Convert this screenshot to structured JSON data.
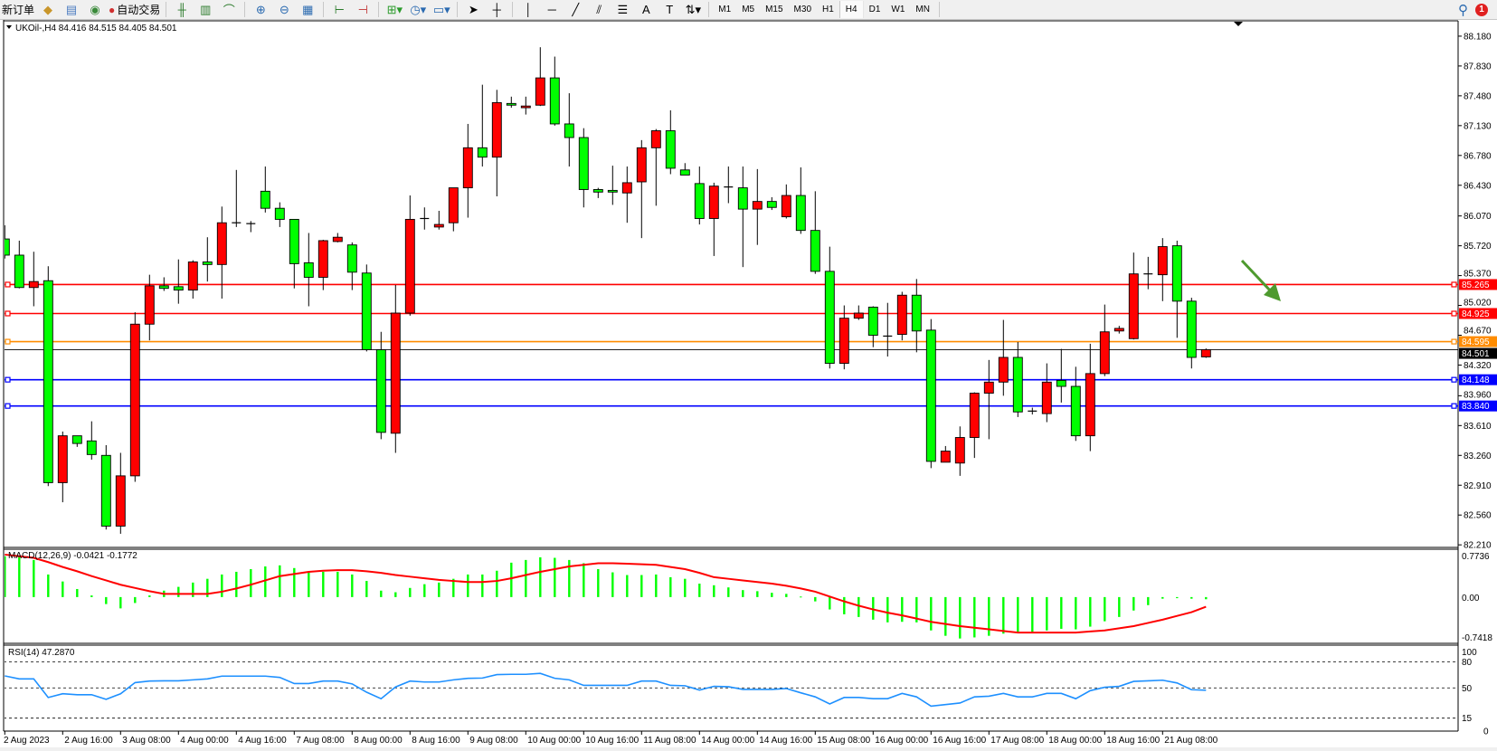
{
  "toolbar": {
    "new_order": "新订单",
    "auto_trading": "自动交易",
    "icons": [
      "gold-bar-icon",
      "server-icon",
      "signal-icon",
      "autotrade-icon",
      "bar-chart-icon",
      "candlestick-chart-icon",
      "line-chart-icon",
      "zoom-in-icon",
      "zoom-out-icon",
      "tile-windows-icon",
      "chart-shift-icon",
      "autoscroll-icon",
      "indicators-icon",
      "periods-clock-icon",
      "templates-icon",
      "cursor-icon",
      "crosshair-icon",
      "vertical-line-icon",
      "horizontal-line-icon",
      "trendline-icon",
      "equidistant-channel-icon",
      "fibonacci-icon",
      "text-icon",
      "text-label-icon",
      "arrows-icon"
    ],
    "timeframes": [
      "M1",
      "M5",
      "M15",
      "M30",
      "H1",
      "H4",
      "D1",
      "W1",
      "MN"
    ],
    "active_timeframe": "H4",
    "notification_count": "1"
  },
  "chart_data": {
    "type": "candlestick",
    "symbol_label": "UKOil-,H4  84.416 84.515 84.405 84.501",
    "ylim": [
      82.18,
      88.36
    ],
    "price_ticks": [
      "88.180",
      "87.830",
      "87.480",
      "87.130",
      "86.780",
      "86.430",
      "86.070",
      "85.720",
      "85.370",
      "85.020",
      "84.670",
      "84.320",
      "83.960",
      "83.610",
      "83.260",
      "82.910",
      "82.560",
      "82.210"
    ],
    "bull_color": "#ff0000",
    "bear_color": "#00ff00",
    "candles_ohlc": [
      [
        85.8,
        85.96,
        85.57,
        85.61
      ],
      [
        85.61,
        85.78,
        85.22,
        85.23
      ],
      [
        85.23,
        85.65,
        85.01,
        85.3
      ],
      [
        85.31,
        85.48,
        82.9,
        82.94
      ],
      [
        82.94,
        83.54,
        82.71,
        83.49
      ],
      [
        83.49,
        83.49,
        83.36,
        83.4
      ],
      [
        83.43,
        83.66,
        83.21,
        83.27
      ],
      [
        83.26,
        83.38,
        82.39,
        82.43
      ],
      [
        82.43,
        83.29,
        82.34,
        83.02
      ],
      [
        83.02,
        84.94,
        82.95,
        84.8
      ],
      [
        84.8,
        85.38,
        84.61,
        85.25
      ],
      [
        85.25,
        85.35,
        85.19,
        85.22
      ],
      [
        85.24,
        85.56,
        85.04,
        85.2
      ],
      [
        85.2,
        85.55,
        85.1,
        85.53
      ],
      [
        85.53,
        85.82,
        85.3,
        85.5
      ],
      [
        85.5,
        86.18,
        85.1,
        85.99
      ],
      [
        85.99,
        86.61,
        85.94,
        85.99
      ],
      [
        85.98,
        86.01,
        85.88,
        85.98
      ],
      [
        86.36,
        86.65,
        86.11,
        86.16
      ],
      [
        86.16,
        86.23,
        85.94,
        86.03
      ],
      [
        86.03,
        86.03,
        85.22,
        85.51
      ],
      [
        85.52,
        85.87,
        85.01,
        85.35
      ],
      [
        85.35,
        85.79,
        85.2,
        85.78
      ],
      [
        85.77,
        85.87,
        85.76,
        85.82
      ],
      [
        85.73,
        85.76,
        85.2,
        85.41
      ],
      [
        85.4,
        85.5,
        84.48,
        84.5
      ],
      [
        84.5,
        84.71,
        83.45,
        83.53
      ],
      [
        83.52,
        85.26,
        83.29,
        84.93
      ],
      [
        84.93,
        86.31,
        84.9,
        86.03
      ],
      [
        86.04,
        86.17,
        85.91,
        86.04
      ],
      [
        85.94,
        86.13,
        85.91,
        85.97
      ],
      [
        85.99,
        86.4,
        85.89,
        86.4
      ],
      [
        86.4,
        87.15,
        86.05,
        86.87
      ],
      [
        86.87,
        87.61,
        86.65,
        86.76
      ],
      [
        86.76,
        87.55,
        86.3,
        87.4
      ],
      [
        87.39,
        87.47,
        87.34,
        87.37
      ],
      [
        87.34,
        87.47,
        87.26,
        87.36
      ],
      [
        87.37,
        88.05,
        87.36,
        87.69
      ],
      [
        87.69,
        87.94,
        87.13,
        87.15
      ],
      [
        87.15,
        87.51,
        86.65,
        86.99
      ],
      [
        86.99,
        87.1,
        86.17,
        86.38
      ],
      [
        86.38,
        86.4,
        86.28,
        86.35
      ],
      [
        86.37,
        86.66,
        86.2,
        86.35
      ],
      [
        86.34,
        86.65,
        85.99,
        86.46
      ],
      [
        86.47,
        86.96,
        85.81,
        86.87
      ],
      [
        86.87,
        87.09,
        86.19,
        87.07
      ],
      [
        87.07,
        87.31,
        86.56,
        86.63
      ],
      [
        86.61,
        86.69,
        86.55,
        86.55
      ],
      [
        86.45,
        86.65,
        85.97,
        86.04
      ],
      [
        86.04,
        86.46,
        85.6,
        86.42
      ],
      [
        86.41,
        86.65,
        86.22,
        86.41
      ],
      [
        86.4,
        86.65,
        85.47,
        86.15
      ],
      [
        86.15,
        86.62,
        85.73,
        86.24
      ],
      [
        86.24,
        86.29,
        86.14,
        86.17
      ],
      [
        86.06,
        86.44,
        86.04,
        86.31
      ],
      [
        86.31,
        86.64,
        85.86,
        85.9
      ],
      [
        85.9,
        86.36,
        85.39,
        85.42
      ],
      [
        85.42,
        85.71,
        84.28,
        84.34
      ],
      [
        84.34,
        85.02,
        84.27,
        84.87
      ],
      [
        84.87,
        85.02,
        84.85,
        84.93
      ],
      [
        85.0,
        85.01,
        84.53,
        84.67
      ],
      [
        84.66,
        85.05,
        84.42,
        84.66
      ],
      [
        84.68,
        85.18,
        84.61,
        85.14
      ],
      [
        85.14,
        85.33,
        84.47,
        84.72
      ],
      [
        84.73,
        84.86,
        83.11,
        83.19
      ],
      [
        83.18,
        83.37,
        83.18,
        83.31
      ],
      [
        83.17,
        83.6,
        83.02,
        83.47
      ],
      [
        83.47,
        84.0,
        83.23,
        83.99
      ],
      [
        83.99,
        84.38,
        83.45,
        84.12
      ],
      [
        84.12,
        84.85,
        83.96,
        84.41
      ],
      [
        84.41,
        84.59,
        83.71,
        83.77
      ],
      [
        83.78,
        83.82,
        83.74,
        83.78
      ],
      [
        83.75,
        84.34,
        83.65,
        84.12
      ],
      [
        84.14,
        84.51,
        83.88,
        84.07
      ],
      [
        84.07,
        84.3,
        83.43,
        83.49
      ],
      [
        83.49,
        84.57,
        83.31,
        84.22
      ],
      [
        84.22,
        85.03,
        84.19,
        84.71
      ],
      [
        84.72,
        84.78,
        84.69,
        84.75
      ],
      [
        84.63,
        85.64,
        84.62,
        85.39
      ],
      [
        85.39,
        85.59,
        85.21,
        85.39
      ],
      [
        85.38,
        85.81,
        85.07,
        85.71
      ],
      [
        85.72,
        85.78,
        84.64,
        85.07
      ],
      [
        85.07,
        85.11,
        84.28,
        84.41
      ],
      [
        84.416,
        84.515,
        84.405,
        84.501
      ]
    ],
    "levels": [
      {
        "value": "85.265",
        "color": "#ff0000"
      },
      {
        "value": "84.925",
        "color": "#ff0000"
      },
      {
        "value": "84.595",
        "color": "#ff8c00"
      },
      {
        "value": "84.148",
        "color": "#0000ff"
      },
      {
        "value": "83.840",
        "color": "#0000ff"
      }
    ],
    "bid": {
      "value": "84.501",
      "color": "#000000"
    },
    "arrow": {
      "direction": "down-right",
      "color": "#4e9a2e"
    },
    "time_labels": [
      "2 Aug 2023",
      "2 Aug 16:00",
      "3 Aug 08:00",
      "4 Aug 00:00",
      "4 Aug 16:00",
      "7 Aug 08:00",
      "8 Aug 00:00",
      "8 Aug 16:00",
      "9 Aug 08:00",
      "10 Aug 00:00",
      "10 Aug 16:00",
      "11 Aug 08:00",
      "14 Aug 00:00",
      "14 Aug 16:00",
      "15 Aug 08:00",
      "16 Aug 00:00",
      "16 Aug 16:00",
      "17 Aug 08:00",
      "18 Aug 00:00",
      "18 Aug 16:00",
      "21 Aug 08:00"
    ],
    "macd": {
      "label": "MACD(12,26,9) -0.0421 -0.1772",
      "ylim": [
        -0.86,
        0.89
      ],
      "ticks": [
        "0.7736",
        "0.00",
        "-0.7418"
      ],
      "histogram_color": "#00ff00",
      "signal_color": "#ff0000",
      "histogram": [
        0.76,
        0.75,
        0.69,
        0.42,
        0.29,
        0.15,
        0.03,
        -0.13,
        -0.21,
        -0.11,
        0.03,
        0.12,
        0.19,
        0.27,
        0.34,
        0.42,
        0.47,
        0.52,
        0.57,
        0.59,
        0.54,
        0.47,
        0.47,
        0.47,
        0.42,
        0.3,
        0.12,
        0.09,
        0.17,
        0.24,
        0.27,
        0.34,
        0.42,
        0.42,
        0.49,
        0.64,
        0.69,
        0.74,
        0.73,
        0.69,
        0.63,
        0.52,
        0.46,
        0.41,
        0.41,
        0.42,
        0.37,
        0.34,
        0.25,
        0.22,
        0.18,
        0.13,
        0.11,
        0.08,
        0.06,
        0.01,
        -0.08,
        -0.23,
        -0.32,
        -0.37,
        -0.42,
        -0.47,
        -0.46,
        -0.47,
        -0.62,
        -0.72,
        -0.77,
        -0.75,
        -0.72,
        -0.68,
        -0.66,
        -0.66,
        -0.62,
        -0.59,
        -0.6,
        -0.55,
        -0.45,
        -0.37,
        -0.25,
        -0.15,
        -0.03,
        -0.02,
        -0.03,
        -0.04
      ],
      "signal": [
        0.79,
        0.76,
        0.73,
        0.65,
        0.56,
        0.48,
        0.39,
        0.31,
        0.23,
        0.17,
        0.11,
        0.06,
        0.06,
        0.06,
        0.06,
        0.1,
        0.16,
        0.23,
        0.31,
        0.39,
        0.43,
        0.47,
        0.49,
        0.5,
        0.5,
        0.48,
        0.45,
        0.41,
        0.38,
        0.35,
        0.32,
        0.3,
        0.28,
        0.28,
        0.3,
        0.35,
        0.41,
        0.47,
        0.52,
        0.57,
        0.6,
        0.63,
        0.63,
        0.62,
        0.61,
        0.6,
        0.56,
        0.52,
        0.45,
        0.37,
        0.34,
        0.31,
        0.28,
        0.25,
        0.21,
        0.16,
        0.1,
        0.01,
        -0.08,
        -0.16,
        -0.23,
        -0.29,
        -0.34,
        -0.4,
        -0.46,
        -0.5,
        -0.54,
        -0.57,
        -0.6,
        -0.63,
        -0.66,
        -0.66,
        -0.66,
        -0.66,
        -0.66,
        -0.64,
        -0.62,
        -0.58,
        -0.54,
        -0.48,
        -0.42,
        -0.35,
        -0.28,
        -0.18
      ]
    },
    "rsi": {
      "label": "RSI(14) 47.2870",
      "ylim": [
        0,
        100
      ],
      "ticks": [
        "100",
        "80",
        "50",
        "15",
        "0"
      ],
      "levels": [
        80,
        50,
        15
      ],
      "color": "#1e90ff",
      "values": [
        63.9,
        60.4,
        60.4,
        38.9,
        43.2,
        42.1,
        42.1,
        36.8,
        43.2,
        56.1,
        57.9,
        58.2,
        58.2,
        59.3,
        60.4,
        63.6,
        63.6,
        63.6,
        63.6,
        62.1,
        55.0,
        55.0,
        57.9,
        57.9,
        54.6,
        45.0,
        37.5,
        51.1,
        57.9,
        56.8,
        56.8,
        59.3,
        61.1,
        61.4,
        65.4,
        65.7,
        65.7,
        66.8,
        61.1,
        59.3,
        52.9,
        52.9,
        52.9,
        52.9,
        57.9,
        57.9,
        52.9,
        52.5,
        47.5,
        51.8,
        51.4,
        48.2,
        48.2,
        48.2,
        49.3,
        44.3,
        39.6,
        31.4,
        38.9,
        38.9,
        37.5,
        37.5,
        43.6,
        39.6,
        28.9,
        30.7,
        32.5,
        39.6,
        40.4,
        43.6,
        39.6,
        39.6,
        43.6,
        43.6,
        37.5,
        46.8,
        50.7,
        51.8,
        57.5,
        58.2,
        58.9,
        55.7,
        47.9,
        47.29
      ]
    }
  }
}
